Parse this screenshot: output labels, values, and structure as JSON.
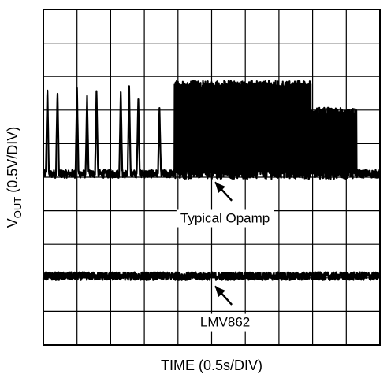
{
  "chart_data": {
    "type": "line",
    "title": "",
    "xlabel": "TIME (0.5s/DIV)",
    "ylabel_main": "V",
    "ylabel_sub": "OUT",
    "ylabel_suffix": " (0.5V/DIV)",
    "grid": true,
    "x_divisions": 10,
    "y_divisions": 10,
    "xlim": [
      0,
      10
    ],
    "ylim": [
      0,
      10
    ],
    "line_color": "#000000",
    "series": [
      {
        "key": "typical",
        "baseline": 5.1,
        "noise": 0.12,
        "spikes": [
          {
            "x": 0.12,
            "height": 7.7
          },
          {
            "x": 0.42,
            "height": 7.6
          },
          {
            "x": 1.0,
            "height": 7.6
          },
          {
            "x": 1.3,
            "height": 7.4
          },
          {
            "x": 1.58,
            "height": 7.6
          },
          {
            "x": 2.3,
            "height": 7.6
          },
          {
            "x": 2.55,
            "height": 7.7
          },
          {
            "x": 2.82,
            "height": 7.4
          },
          {
            "x": 3.45,
            "height": 7.0
          }
        ],
        "bursts": [
          {
            "x0": 3.9,
            "x1": 7.95,
            "high": 7.75
          },
          {
            "x0": 7.95,
            "x1": 9.3,
            "high": 6.95
          }
        ]
      },
      {
        "key": "lmv862",
        "baseline": 2.05,
        "noise": 0.12,
        "spikes": [],
        "bursts": []
      }
    ],
    "annotations": [
      {
        "key": "typical",
        "text": "Typical Opamp",
        "arrow_tip": [
          5.1,
          4.85
        ],
        "arrow_tail": [
          5.6,
          4.3
        ],
        "label_pos": [
          5.4,
          3.65
        ]
      },
      {
        "key": "lmv862",
        "text": "LMV862",
        "arrow_tip": [
          5.1,
          1.75
        ],
        "arrow_tail": [
          5.6,
          1.2
        ],
        "label_pos": [
          5.4,
          0.55
        ]
      }
    ]
  }
}
